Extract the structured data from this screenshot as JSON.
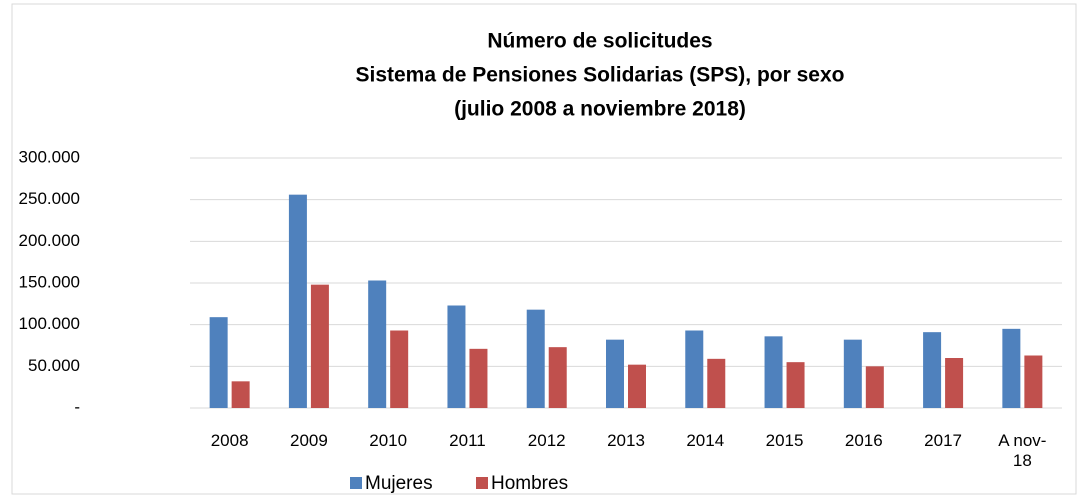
{
  "chart_data": {
    "type": "bar",
    "title": [
      "Número de solicitudes",
      "Sistema de Pensiones Solidarias (SPS), por sexo",
      "(julio 2008 a noviembre 2018)"
    ],
    "categories": [
      "2008",
      "2009",
      "2010",
      "2011",
      "2012",
      "2013",
      "2014",
      "2015",
      "2016",
      "2017",
      "A nov-18"
    ],
    "series": [
      {
        "name": "Mujeres",
        "color": "#4f81bd",
        "values": [
          109000,
          256000,
          153000,
          123000,
          118000,
          82000,
          93000,
          86000,
          82000,
          91000,
          95000
        ]
      },
      {
        "name": "Hombres",
        "color": "#c0504d",
        "values": [
          32000,
          148000,
          93000,
          71000,
          73000,
          52000,
          59000,
          55000,
          50000,
          60000,
          63000
        ]
      }
    ],
    "ylim": [
      0,
      300000
    ],
    "yticks": [
      {
        "value": 0,
        "label": "-"
      },
      {
        "value": 50000,
        "label": "50.000"
      },
      {
        "value": 100000,
        "label": "100.000"
      },
      {
        "value": 150000,
        "label": "150.000"
      },
      {
        "value": 200000,
        "label": "200.000"
      },
      {
        "value": 250000,
        "label": "250.000"
      },
      {
        "value": 300000,
        "label": "300.000"
      }
    ],
    "grid": true,
    "legend": "bottom"
  }
}
